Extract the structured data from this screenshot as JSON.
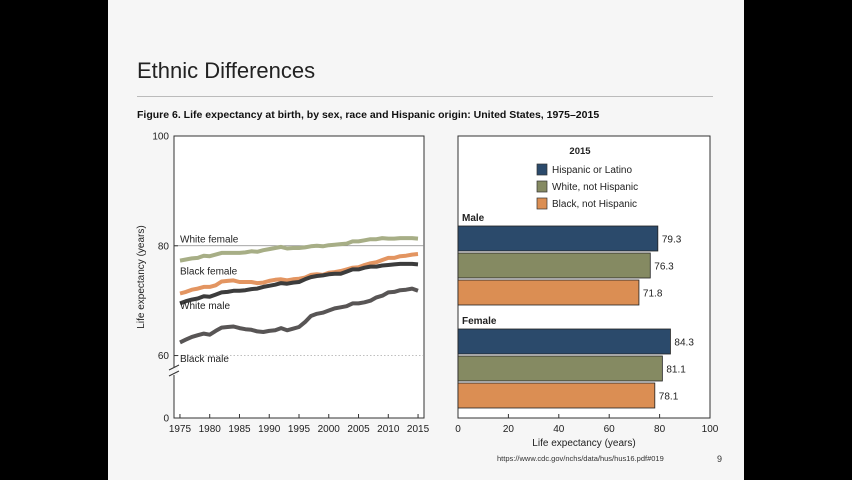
{
  "slide": {
    "title": "Ethnic Differences",
    "figure_caption": "Figure 6. Life expectancy at birth, by sex, race and Hispanic origin: United States, 1975–2015",
    "source": "https://www.cdc.gov/nchs/data/hus/hus16.pdf#019",
    "page_number": "9"
  },
  "colors": {
    "white_female": "#a7ae86",
    "black_female": "#e39561",
    "white_male": "#3c3c3c",
    "black_male": "#585555",
    "hispanic": "#2b4a6b",
    "white_not_hispanic": "#858a62",
    "black_not_hispanic": "#db8e53"
  },
  "chart_data": [
    {
      "type": "line",
      "ylabel": "Life expectancy (years)",
      "xlabel": "",
      "xlim": [
        1974,
        2016
      ],
      "ylim": [
        0,
        100
      ],
      "axis_break": true,
      "xticks": [
        "1975",
        "1980",
        "1985",
        "1990",
        "1995",
        "2000",
        "2005",
        "2010",
        "2015"
      ],
      "yticks": [
        "0",
        "60",
        "80",
        "100"
      ],
      "reference_lines": [
        80,
        60
      ],
      "x": [
        1975,
        1976,
        1977,
        1978,
        1979,
        1980,
        1981,
        1982,
        1983,
        1984,
        1985,
        1986,
        1987,
        1988,
        1989,
        1990,
        1991,
        1992,
        1993,
        1994,
        1995,
        1996,
        1997,
        1998,
        1999,
        2000,
        2001,
        2002,
        2003,
        2004,
        2005,
        2006,
        2007,
        2008,
        2009,
        2010,
        2011,
        2012,
        2013,
        2014,
        2015
      ],
      "series": [
        {
          "name": "White female",
          "color_key": "white_female",
          "values": [
            77.3,
            77.5,
            77.7,
            77.8,
            78.2,
            78.1,
            78.4,
            78.7,
            78.7,
            78.7,
            78.7,
            78.8,
            79.0,
            78.9,
            79.2,
            79.4,
            79.6,
            79.8,
            79.5,
            79.6,
            79.6,
            79.7,
            79.9,
            80.0,
            79.9,
            80.1,
            80.2,
            80.3,
            80.4,
            80.8,
            80.8,
            81.0,
            81.2,
            81.2,
            81.4,
            81.3,
            81.3,
            81.4,
            81.4,
            81.4,
            81.3
          ]
        },
        {
          "name": "Black female",
          "color_key": "black_female",
          "values": [
            71.3,
            71.6,
            72.0,
            72.2,
            72.5,
            72.5,
            72.8,
            73.5,
            73.6,
            73.7,
            73.4,
            73.4,
            73.4,
            73.2,
            73.3,
            73.6,
            73.8,
            73.9,
            73.7,
            73.9,
            74.0,
            74.2,
            74.7,
            74.8,
            74.7,
            75.1,
            75.2,
            75.4,
            75.7,
            76.0,
            76.1,
            76.5,
            76.8,
            77.0,
            77.4,
            77.8,
            77.8,
            78.1,
            78.2,
            78.4,
            78.5
          ]
        },
        {
          "name": "White male",
          "color_key": "white_male",
          "values": [
            69.5,
            69.9,
            70.2,
            70.4,
            70.8,
            70.7,
            71.1,
            71.5,
            71.6,
            71.8,
            71.8,
            71.9,
            72.1,
            72.2,
            72.5,
            72.7,
            72.9,
            73.2,
            73.1,
            73.3,
            73.4,
            73.9,
            74.3,
            74.5,
            74.6,
            74.8,
            74.9,
            74.9,
            75.3,
            75.7,
            75.7,
            76.0,
            76.2,
            76.2,
            76.4,
            76.5,
            76.6,
            76.7,
            76.7,
            76.7,
            76.6
          ]
        },
        {
          "name": "Black male",
          "color_key": "black_male",
          "values": [
            62.4,
            62.9,
            63.4,
            63.7,
            64.0,
            63.8,
            64.5,
            65.1,
            65.2,
            65.3,
            65.0,
            64.8,
            64.7,
            64.4,
            64.3,
            64.5,
            64.6,
            65.0,
            64.6,
            64.9,
            65.2,
            66.1,
            67.2,
            67.6,
            67.8,
            68.2,
            68.6,
            68.8,
            69.0,
            69.5,
            69.5,
            69.7,
            70.0,
            70.6,
            70.9,
            71.5,
            71.6,
            71.9,
            72.0,
            72.2,
            71.8
          ]
        }
      ]
    },
    {
      "type": "bar",
      "orientation": "horizontal",
      "legend_title": "2015",
      "legend_position": "top",
      "xlabel": "Life expectancy (years)",
      "xlim": [
        0,
        100
      ],
      "xticks": [
        "0",
        "20",
        "40",
        "60",
        "80",
        "100"
      ],
      "series": [
        {
          "name": "Hispanic or Latino",
          "color_key": "hispanic"
        },
        {
          "name": "White, not Hispanic",
          "color_key": "white_not_hispanic"
        },
        {
          "name": "Black, not Hispanic",
          "color_key": "black_not_hispanic"
        }
      ],
      "groups": [
        {
          "label": "Male",
          "values": [
            79.3,
            76.3,
            71.8
          ],
          "value_labels": [
            "79.3",
            "76.3",
            "71.8"
          ]
        },
        {
          "label": "Female",
          "values": [
            84.3,
            81.1,
            78.1
          ],
          "value_labels": [
            "84.3",
            "81.1",
            "78.1"
          ]
        }
      ]
    }
  ]
}
